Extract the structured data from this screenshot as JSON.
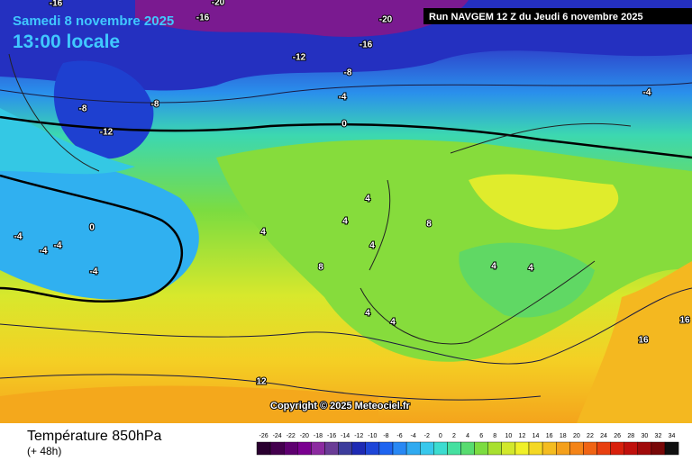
{
  "header": {
    "date": "Samedi 8 novembre 2025",
    "time": "13:00 locale",
    "run": "Run NAVGEM 12 Z du Jeudi 6 novembre 2025"
  },
  "copyright": "Copyright © 2025 Meteociel.fr",
  "contour_labels": [
    -16,
    -16,
    -20,
    -20,
    -16,
    -12,
    -8,
    -8,
    -8,
    -12,
    -4,
    -4,
    0,
    0,
    -4,
    -4,
    -4,
    -4,
    4,
    4,
    4,
    8,
    4,
    8,
    4,
    4,
    4,
    4,
    12,
    16,
    16
  ],
  "footer": {
    "title": "Température 850hPa",
    "lead": "(+ 48h)"
  },
  "scale": {
    "values": [
      -26,
      -24,
      -22,
      -20,
      -18,
      -16,
      -14,
      -12,
      -10,
      -8,
      -6,
      -4,
      -2,
      0,
      2,
      4,
      6,
      8,
      10,
      12,
      14,
      16,
      18,
      20,
      22,
      24,
      26,
      28,
      30,
      32,
      34
    ],
    "colors": [
      "#2a0030",
      "#44004e",
      "#5e0070",
      "#7a0090",
      "#8c2aa0",
      "#6a3c96",
      "#3c3c9c",
      "#1e2ab4",
      "#1e46d8",
      "#1e64f0",
      "#2888f4",
      "#30aaf0",
      "#38c8ec",
      "#3cdcd0",
      "#46e0a0",
      "#58dc70",
      "#7cdc40",
      "#a8e030",
      "#d2e82c",
      "#f0f028",
      "#f4d824",
      "#f4bc20",
      "#f4a01c",
      "#f48418",
      "#f06414",
      "#e84010",
      "#d8200c",
      "#c0100c",
      "#a00a0a",
      "#780808",
      "#101010"
    ]
  }
}
